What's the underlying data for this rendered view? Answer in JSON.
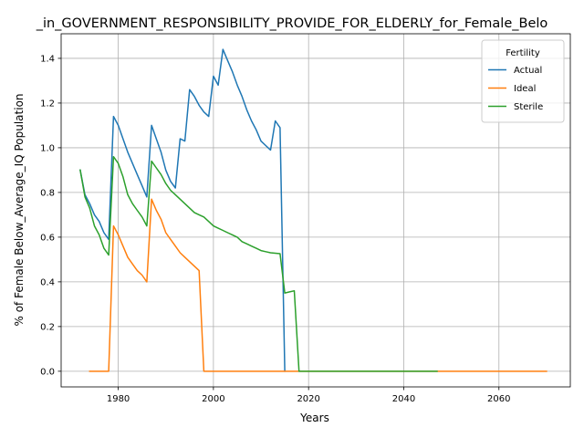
{
  "chart_data": {
    "type": "line",
    "title": "_in_GOVERNMENT_RESPONSIBILITY_PROVIDE_FOR_ELDERLY_for_Female_Belo",
    "xlabel": "Years",
    "ylabel": "% of Female Below_Average_IQ Population",
    "xlim": [
      1968,
      2075
    ],
    "ylim": [
      -0.07,
      1.51
    ],
    "xticks": [
      1980,
      2000,
      2020,
      2040,
      2060
    ],
    "yticks": [
      0.0,
      0.2,
      0.4,
      0.6,
      0.8,
      1.0,
      1.2,
      1.4
    ],
    "xtick_labels": [
      "1980",
      "2000",
      "2020",
      "2040",
      "2060"
    ],
    "ytick_labels": [
      "0.0",
      "0.2",
      "0.4",
      "0.6",
      "0.8",
      "1.0",
      "1.2",
      "1.4"
    ],
    "grid": true,
    "legend": {
      "title": "Fertility",
      "position": "top-right"
    },
    "series": [
      {
        "name": "Actual",
        "color": "#1f77b4",
        "x": [
          1972,
          1973,
          1974,
          1975,
          1976,
          1977,
          1978,
          1979,
          1980,
          1981,
          1982,
          1983,
          1984,
          1985,
          1986,
          1987,
          1988,
          1989,
          1990,
          1991,
          1992,
          1993,
          1994,
          1995,
          1996,
          1997,
          1998,
          1999,
          2000,
          2001,
          2002,
          2003,
          2004,
          2005,
          2006,
          2007,
          2008,
          2009,
          2010,
          2011,
          2012,
          2013,
          2014,
          2015
        ],
        "y": [
          0.9,
          0.79,
          0.75,
          0.7,
          0.67,
          0.62,
          0.59,
          1.14,
          1.1,
          1.04,
          0.98,
          0.93,
          0.88,
          0.83,
          0.78,
          1.1,
          1.04,
          0.98,
          0.9,
          0.85,
          0.82,
          1.04,
          1.03,
          1.26,
          1.23,
          1.19,
          1.16,
          1.14,
          1.32,
          1.28,
          1.44,
          1.39,
          1.34,
          1.28,
          1.23,
          1.17,
          1.12,
          1.08,
          1.03,
          1.01,
          0.99,
          1.12,
          1.09,
          0.0
        ]
      },
      {
        "name": "Ideal",
        "color": "#ff7f0e",
        "x": [
          1974,
          1975,
          1976,
          1977,
          1978,
          1979,
          1980,
          1981,
          1982,
          1983,
          1984,
          1985,
          1986,
          1987,
          1988,
          1989,
          1990,
          1991,
          1992,
          1993,
          1994,
          1995,
          1996,
          1997,
          1998,
          2000,
          2020,
          2040,
          2060,
          2070
        ],
        "y": [
          0.0,
          0.0,
          0.0,
          0.0,
          0.0,
          0.65,
          0.61,
          0.56,
          0.51,
          0.48,
          0.45,
          0.43,
          0.4,
          0.77,
          0.72,
          0.68,
          0.62,
          0.59,
          0.56,
          0.53,
          0.51,
          0.49,
          0.47,
          0.45,
          0.0,
          0.0,
          0.0,
          0.0,
          0.0,
          0.0
        ]
      },
      {
        "name": "Sterile",
        "color": "#2ca02c",
        "x": [
          1972,
          1973,
          1974,
          1975,
          1976,
          1977,
          1978,
          1979,
          1980,
          1981,
          1982,
          1983,
          1984,
          1985,
          1986,
          1987,
          1988,
          1989,
          1990,
          1991,
          1992,
          1993,
          1994,
          1995,
          1996,
          1997,
          1998,
          1999,
          2000,
          2001,
          2002,
          2003,
          2004,
          2005,
          2006,
          2007,
          2008,
          2009,
          2010,
          2011,
          2012,
          2013,
          2014,
          2015,
          2016,
          2017,
          2018,
          2030,
          2047
        ],
        "y": [
          0.9,
          0.78,
          0.73,
          0.65,
          0.61,
          0.55,
          0.52,
          0.96,
          0.93,
          0.87,
          0.79,
          0.75,
          0.72,
          0.69,
          0.65,
          0.94,
          0.91,
          0.88,
          0.84,
          0.81,
          0.79,
          0.77,
          0.75,
          0.73,
          0.71,
          0.7,
          0.69,
          0.67,
          0.65,
          0.64,
          0.63,
          0.62,
          0.61,
          0.6,
          0.58,
          0.57,
          0.56,
          0.55,
          0.54,
          0.535,
          0.53,
          0.528,
          0.526,
          0.35,
          0.355,
          0.36,
          0.0,
          0.0,
          0.0
        ]
      }
    ]
  }
}
